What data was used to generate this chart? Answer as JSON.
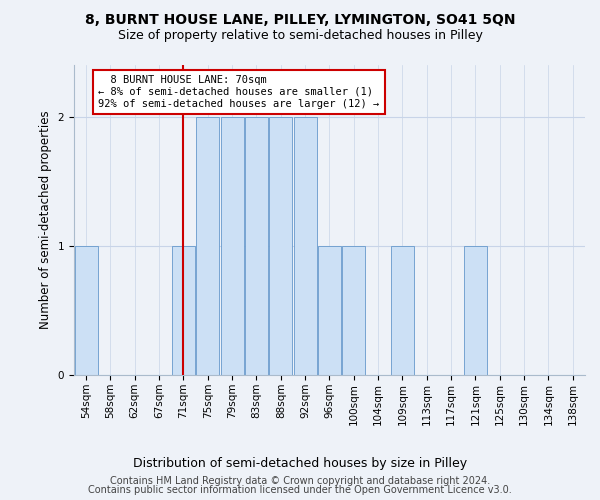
{
  "title": "8, BURNT HOUSE LANE, PILLEY, LYMINGTON, SO41 5QN",
  "subtitle": "Size of property relative to semi-detached houses in Pilley",
  "xlabel": "Distribution of semi-detached houses by size in Pilley",
  "ylabel": "Number of semi-detached properties",
  "categories": [
    "54sqm",
    "58sqm",
    "62sqm",
    "67sqm",
    "71sqm",
    "75sqm",
    "79sqm",
    "83sqm",
    "88sqm",
    "92sqm",
    "96sqm",
    "100sqm",
    "104sqm",
    "109sqm",
    "113sqm",
    "117sqm",
    "121sqm",
    "125sqm",
    "130sqm",
    "134sqm",
    "138sqm"
  ],
  "bar_values": [
    1,
    0,
    0,
    0,
    1,
    2,
    2,
    2,
    2,
    2,
    1,
    1,
    0,
    1,
    0,
    0,
    1,
    0,
    0,
    0,
    0
  ],
  "bar_color": "#cce0f5",
  "bar_edge_color": "#6699cc",
  "subject_index": 4,
  "subject_label": "8 BURNT HOUSE LANE: 70sqm",
  "subject_smaller_pct": "8%",
  "subject_smaller_n": 1,
  "subject_larger_pct": "92%",
  "subject_larger_n": 12,
  "vline_color": "#cc0000",
  "annotation_box_color": "#ffffff",
  "annotation_box_edge": "#cc0000",
  "ylim": [
    0,
    2.4
  ],
  "yticks": [
    0,
    1,
    2
  ],
  "footer1": "Contains HM Land Registry data © Crown copyright and database right 2024.",
  "footer2": "Contains public sector information licensed under the Open Government Licence v3.0.",
  "title_fontsize": 10,
  "subtitle_fontsize": 9,
  "xlabel_fontsize": 9,
  "ylabel_fontsize": 8.5,
  "tick_fontsize": 7.5,
  "footer_fontsize": 7,
  "background_color": "#eef2f8",
  "grid_color": "#c8d4e8"
}
